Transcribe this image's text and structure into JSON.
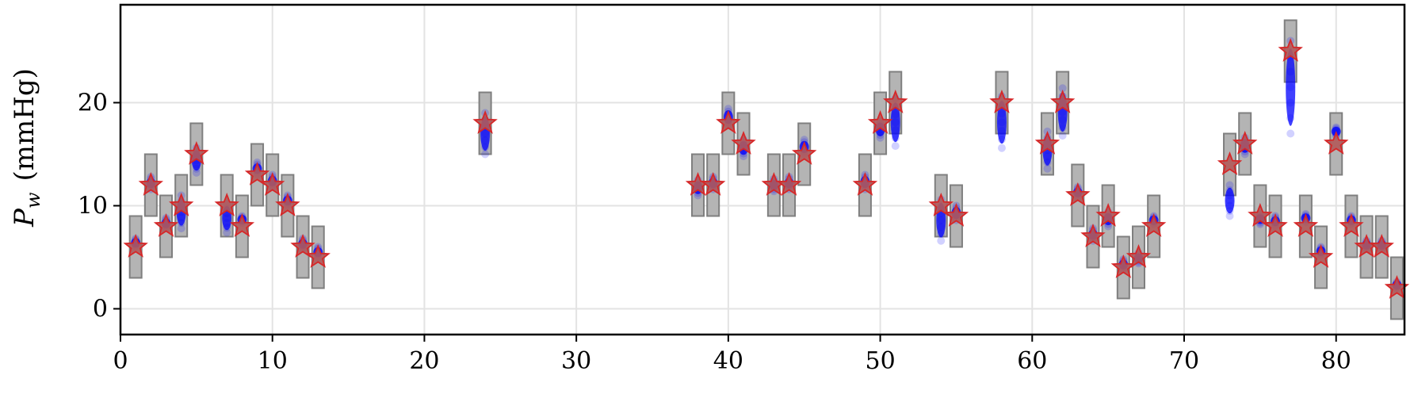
{
  "chart_data": {
    "type": "scatter",
    "title": "",
    "xlabel": "",
    "ylabel": {
      "symbol": "P",
      "subscript": "w",
      "unit": "(mmHg)"
    },
    "xlim": [
      0,
      84.5
    ],
    "ylim": [
      -2.5,
      29.5
    ],
    "xticks": [
      0,
      10,
      20,
      30,
      40,
      50,
      60,
      70,
      80
    ],
    "yticks": [
      0,
      10,
      20
    ],
    "grid": true,
    "legend": "none",
    "colors": {
      "box_fill": "#b4b4b4",
      "box_edge": "#7f7f7f",
      "samples": "#0000ff",
      "star": "#d62728",
      "star_fill": "#b05a5a",
      "grid": "#e3e3e3"
    },
    "box_half_height": 3,
    "series": [
      {
        "name": "",
        "kind": "interval_box",
        "points": [
          {
            "x": 1,
            "y": 6
          },
          {
            "x": 2,
            "y": 12
          },
          {
            "x": 3,
            "y": 8
          },
          {
            "x": 4,
            "y": 10
          },
          {
            "x": 5,
            "y": 15
          },
          {
            "x": 7,
            "y": 10
          },
          {
            "x": 8,
            "y": 8
          },
          {
            "x": 9,
            "y": 13
          },
          {
            "x": 10,
            "y": 12
          },
          {
            "x": 11,
            "y": 10
          },
          {
            "x": 12,
            "y": 6
          },
          {
            "x": 13,
            "y": 5
          },
          {
            "x": 24,
            "y": 18
          },
          {
            "x": 38,
            "y": 12
          },
          {
            "x": 39,
            "y": 12
          },
          {
            "x": 40,
            "y": 18
          },
          {
            "x": 41,
            "y": 16
          },
          {
            "x": 43,
            "y": 12
          },
          {
            "x": 44,
            "y": 12
          },
          {
            "x": 45,
            "y": 15
          },
          {
            "x": 49,
            "y": 12
          },
          {
            "x": 50,
            "y": 18
          },
          {
            "x": 51,
            "y": 20
          },
          {
            "x": 54,
            "y": 10
          },
          {
            "x": 55,
            "y": 9
          },
          {
            "x": 58,
            "y": 20
          },
          {
            "x": 61,
            "y": 16
          },
          {
            "x": 62,
            "y": 20
          },
          {
            "x": 63,
            "y": 11
          },
          {
            "x": 64,
            "y": 7
          },
          {
            "x": 65,
            "y": 9
          },
          {
            "x": 66,
            "y": 4
          },
          {
            "x": 67,
            "y": 5
          },
          {
            "x": 68,
            "y": 8
          },
          {
            "x": 73,
            "y": 14
          },
          {
            "x": 74,
            "y": 16
          },
          {
            "x": 75,
            "y": 9
          },
          {
            "x": 76,
            "y": 8
          },
          {
            "x": 77,
            "y": 25
          },
          {
            "x": 78,
            "y": 8
          },
          {
            "x": 79,
            "y": 5
          },
          {
            "x": 80,
            "y": 16
          },
          {
            "x": 81,
            "y": 8
          },
          {
            "x": 82,
            "y": 6
          },
          {
            "x": 83,
            "y": 6
          },
          {
            "x": 84,
            "y": 2
          }
        ]
      },
      {
        "name": "",
        "kind": "sample_cloud",
        "points": [
          {
            "x": 1,
            "ymin": 6.0,
            "ymax": 6.8
          },
          {
            "x": 2,
            "ymin": 11.6,
            "ymax": 12.8
          },
          {
            "x": 3,
            "ymin": 7.8,
            "ymax": 8.8
          },
          {
            "x": 4,
            "ymin": 7.8,
            "ymax": 11.0
          },
          {
            "x": 5,
            "ymin": 13.2,
            "ymax": 15.6
          },
          {
            "x": 7,
            "ymin": 7.4,
            "ymax": 10.2
          },
          {
            "x": 8,
            "ymin": 8.3,
            "ymax": 9.0
          },
          {
            "x": 9,
            "ymin": 13.0,
            "ymax": 14.2
          },
          {
            "x": 10,
            "ymin": 11.8,
            "ymax": 13.0
          },
          {
            "x": 11,
            "ymin": 10.0,
            "ymax": 11.0
          },
          {
            "x": 12,
            "ymin": 5.8,
            "ymax": 6.8
          },
          {
            "x": 13,
            "ymin": 5.0,
            "ymax": 6.0
          },
          {
            "x": 24,
            "ymin": 15.0,
            "ymax": 19.0
          },
          {
            "x": 38,
            "ymin": 11.0,
            "ymax": 12.5
          },
          {
            "x": 39,
            "ymin": 11.6,
            "ymax": 12.8
          },
          {
            "x": 40,
            "ymin": 17.8,
            "ymax": 19.4
          },
          {
            "x": 41,
            "ymin": 14.8,
            "ymax": 16.4
          },
          {
            "x": 43,
            "ymin": 11.4,
            "ymax": 12.6
          },
          {
            "x": 44,
            "ymin": 11.6,
            "ymax": 12.8
          },
          {
            "x": 45,
            "ymin": 15.0,
            "ymax": 16.4
          },
          {
            "x": 49,
            "ymin": 11.6,
            "ymax": 13.0
          },
          {
            "x": 50,
            "ymin": 16.6,
            "ymax": 18.2
          },
          {
            "x": 51,
            "ymin": 15.8,
            "ymax": 20.4
          },
          {
            "x": 54,
            "ymin": 6.6,
            "ymax": 10.6
          },
          {
            "x": 55,
            "ymin": 8.6,
            "ymax": 10.0
          },
          {
            "x": 58,
            "ymin": 15.6,
            "ymax": 20.6
          },
          {
            "x": 61,
            "ymin": 13.6,
            "ymax": 17.2
          },
          {
            "x": 62,
            "ymin": 16.8,
            "ymax": 21.4
          },
          {
            "x": 63,
            "ymin": 10.8,
            "ymax": 11.8
          },
          {
            "x": 64,
            "ymin": 6.6,
            "ymax": 7.8
          },
          {
            "x": 65,
            "ymin": 8.0,
            "ymax": 9.4
          },
          {
            "x": 66,
            "ymin": 3.8,
            "ymax": 4.8
          },
          {
            "x": 67,
            "ymin": 4.4,
            "ymax": 5.4
          },
          {
            "x": 68,
            "ymin": 8.2,
            "ymax": 9.0
          },
          {
            "x": 73,
            "ymin": 9.0,
            "ymax": 12.0
          },
          {
            "x": 74,
            "ymin": 15.0,
            "ymax": 16.6
          },
          {
            "x": 75,
            "ymin": 8.2,
            "ymax": 9.2
          },
          {
            "x": 76,
            "ymin": 8.0,
            "ymax": 9.0
          },
          {
            "x": 77,
            "ymin": 17.0,
            "ymax": 26.0
          },
          {
            "x": 78,
            "ymin": 8.4,
            "ymax": 9.2
          },
          {
            "x": 79,
            "ymin": 5.2,
            "ymax": 6.0
          },
          {
            "x": 80,
            "ymin": 16.8,
            "ymax": 17.6
          },
          {
            "x": 81,
            "ymin": 8.2,
            "ymax": 9.0
          },
          {
            "x": 82,
            "ymin": 5.8,
            "ymax": 6.6
          },
          {
            "x": 83,
            "ymin": 5.8,
            "ymax": 6.6
          },
          {
            "x": 84,
            "ymin": 2.0,
            "ymax": 2.6
          }
        ]
      }
    ]
  }
}
